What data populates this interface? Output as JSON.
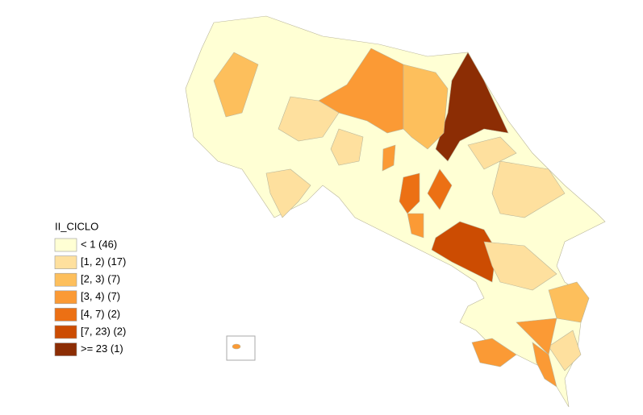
{
  "legend": {
    "title": "II_CICLO",
    "items": [
      {
        "label": "< 1 (46)",
        "color": "#ffffd4"
      },
      {
        "label": "[1, 2) (17)",
        "color": "#fee09e"
      },
      {
        "label": "[2, 3) (7)",
        "color": "#fdbf5c"
      },
      {
        "label": "[3, 4) (7)",
        "color": "#fb9a35"
      },
      {
        "label": "[4, 7) (2)",
        "color": "#ec7014"
      },
      {
        "label": "[7, 23) (2)",
        "color": "#cc4c02"
      },
      {
        "label": ">= 23 (1)",
        "color": "#8c2d04"
      }
    ]
  }
}
